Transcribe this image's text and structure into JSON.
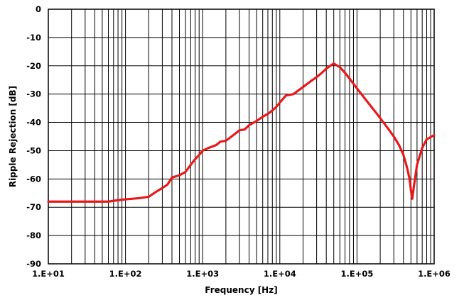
{
  "chart_data": {
    "type": "line",
    "xlabel": "Frequency [Hz]",
    "ylabel": "Ripple Rejection [dB]",
    "xscale": "log",
    "xlim": [
      10,
      1000000
    ],
    "ylim": [
      -90,
      0
    ],
    "grid": true,
    "x_tick_labels": [
      "1.E+01",
      "1.E+02",
      "1.E+03",
      "1.E+04",
      "1.E+05",
      "1.E+06"
    ],
    "y_tick_labels": [
      "0",
      "-10",
      "-20",
      "-30",
      "-40",
      "-50",
      "-60",
      "-70",
      "-80",
      "-90"
    ],
    "series": [
      {
        "color": "#e8191b",
        "x": [
          10,
          20,
          40,
          60,
          80,
          100,
          150,
          200,
          250,
          300,
          350,
          400,
          500,
          600,
          700,
          800,
          900,
          1000,
          1200,
          1500,
          1700,
          2000,
          2500,
          3000,
          3500,
          4000,
          5000,
          6000,
          7000,
          8000,
          9000,
          10000,
          12000,
          15000,
          20000,
          25000,
          30000,
          35000,
          40000,
          45000,
          50000,
          60000,
          70000,
          80000,
          100000,
          130000,
          170000,
          200000,
          250000,
          300000,
          350000,
          400000,
          420000,
          450000,
          480000,
          500000,
          520000,
          550000,
          600000,
          700000,
          800000,
          1000000
        ],
        "y": [
          -68,
          -68,
          -68,
          -68,
          -67.5,
          -67.2,
          -66.8,
          -66.3,
          -64.5,
          -63.2,
          -62,
          -59.5,
          -58.7,
          -57.5,
          -55,
          -53,
          -51.5,
          -50,
          -49,
          -48,
          -46.8,
          -46.5,
          -44.5,
          -42.8,
          -42.5,
          -41,
          -39.5,
          -38,
          -37,
          -35.8,
          -34.5,
          -33,
          -30.5,
          -30,
          -27.5,
          -25.5,
          -24,
          -22.5,
          -21,
          -20,
          -19.2,
          -20.5,
          -22.5,
          -24.5,
          -28,
          -32,
          -36,
          -38.5,
          -42,
          -45,
          -48,
          -51.5,
          -53.5,
          -56.5,
          -60,
          -64,
          -67,
          -62,
          -55,
          -49,
          -46,
          -44.5
        ]
      }
    ]
  }
}
